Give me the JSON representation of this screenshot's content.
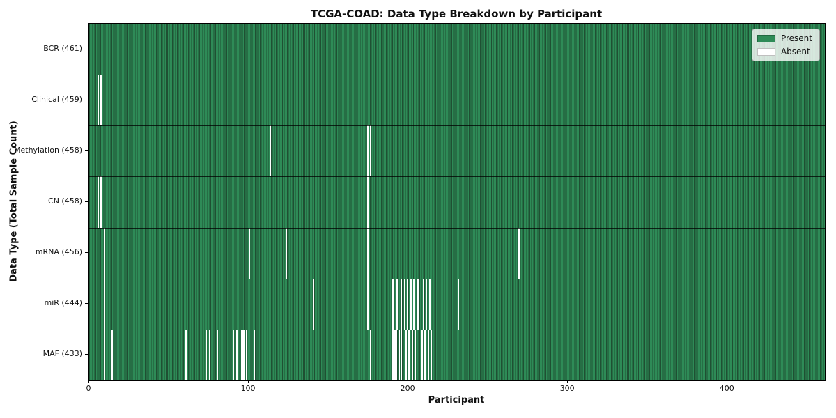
{
  "title": "TCGA-COAD: Data Type Breakdown by Participant",
  "xlabel": "Participant",
  "ylabel": "Data Type (Total Sample Count)",
  "legend": {
    "present": "Present",
    "absent": "Absent"
  },
  "colors": {
    "present": "#2e8b57",
    "present_edge": "#1f5033",
    "absent": "#ffffff",
    "row_divider": "rgba(0,0,0,0.75)",
    "axis": "#000000",
    "legend_bg": "rgba(255,255,255,0.8)"
  },
  "chart_data": {
    "type": "heatmap",
    "title": "TCGA-COAD: Data Type Breakdown by Participant",
    "xlabel": "Participant",
    "ylabel": "Data Type (Total Sample Count)",
    "legend": [
      "Present",
      "Absent"
    ],
    "legend_position": "upper right",
    "grid": false,
    "n_participants": 461,
    "x_range": [
      0,
      461
    ],
    "x_ticks": [
      0,
      100,
      200,
      300,
      400
    ],
    "rows": [
      {
        "data_type": "BCR",
        "label": "BCR (461)",
        "total": 461,
        "absent_participants": []
      },
      {
        "data_type": "Clinical",
        "label": "Clinical (459)",
        "total": 459,
        "absent_participants": [
          5,
          7
        ]
      },
      {
        "data_type": "Methylation",
        "label": "Methylation (458)",
        "total": 458,
        "absent_participants": [
          113,
          174,
          176
        ]
      },
      {
        "data_type": "CN",
        "label": "CN (458)",
        "total": 458,
        "absent_participants": [
          5,
          7,
          174
        ]
      },
      {
        "data_type": "mRNA",
        "label": "mRNA (456)",
        "total": 456,
        "absent_participants": [
          9,
          100,
          123,
          174,
          269
        ]
      },
      {
        "data_type": "miR",
        "label": "miR (444)",
        "total": 444,
        "absent_participants": [
          9,
          140,
          174,
          190,
          192,
          193,
          195,
          197,
          199,
          201,
          203,
          205,
          206,
          209,
          211,
          213,
          231
        ]
      },
      {
        "data_type": "MAF",
        "label": "MAF (433)",
        "total": 433,
        "absent_participants": [
          9,
          14,
          60,
          73,
          75,
          80,
          84,
          90,
          92,
          95,
          96,
          97,
          98,
          103,
          176,
          190,
          191,
          192,
          194,
          195,
          198,
          200,
          202,
          204,
          208,
          210,
          212,
          214
        ]
      }
    ]
  }
}
